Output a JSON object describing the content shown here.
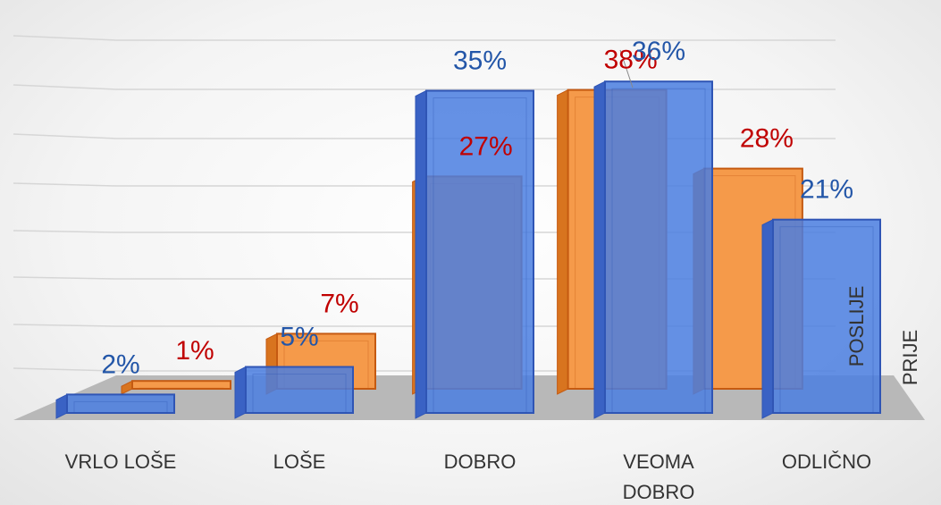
{
  "chart_data": {
    "type": "bar3d",
    "categories": [
      "VRLO LOŠE",
      "LOŠE",
      "DOBRO",
      "VEOMA DOBRO",
      "ODLIČNO"
    ],
    "series": [
      {
        "name": "PRIJE",
        "color": "#f59a4a",
        "values": [
          1,
          7,
          27,
          38,
          28
        ],
        "value_labels": [
          "1%",
          "7%",
          "27%",
          "38%",
          "28%"
        ]
      },
      {
        "name": "POSLIJE",
        "color": "#4a7ee0",
        "values": [
          2,
          5,
          35,
          36,
          21
        ],
        "value_labels": [
          "2%",
          "5%",
          "35%",
          "36%",
          "21%"
        ]
      }
    ],
    "ylim": [
      0,
      40
    ]
  }
}
